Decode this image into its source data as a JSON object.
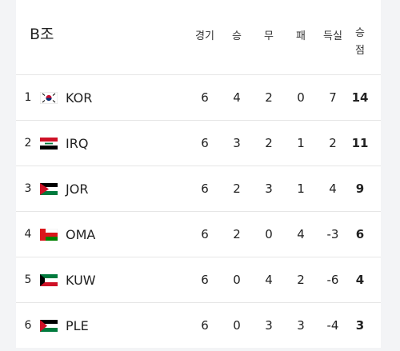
{
  "title": "B조",
  "table": {
    "headers": [
      "경기",
      "승",
      "무",
      "패",
      "득실",
      "승점"
    ],
    "rows": [
      {
        "rank": 1,
        "team": "KOR",
        "cells": [
          6,
          4,
          2,
          0,
          7,
          14
        ]
      },
      {
        "rank": 2,
        "team": "IRQ",
        "cells": [
          6,
          3,
          2,
          1,
          2,
          11
        ]
      },
      {
        "rank": 3,
        "team": "JOR",
        "cells": [
          6,
          2,
          3,
          1,
          4,
          9
        ]
      },
      {
        "rank": 4,
        "team": "OMA",
        "cells": [
          6,
          2,
          0,
          4,
          -3,
          6
        ]
      },
      {
        "rank": 5,
        "team": "KUW",
        "cells": [
          6,
          0,
          4,
          2,
          -6,
          4
        ]
      },
      {
        "rank": 6,
        "team": "PLE",
        "cells": [
          6,
          0,
          3,
          3,
          -4,
          3
        ]
      }
    ]
  }
}
